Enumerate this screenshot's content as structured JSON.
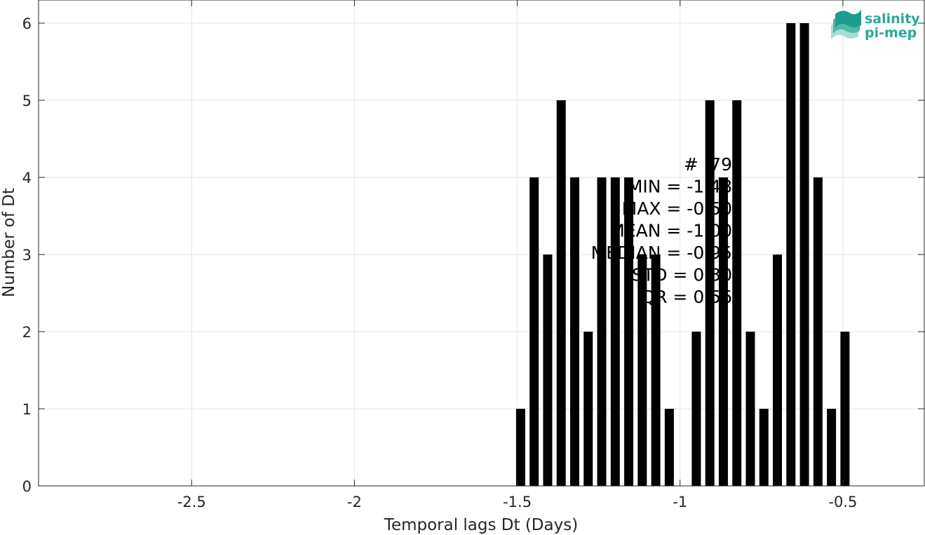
{
  "chart_data": {
    "type": "bar",
    "title": "",
    "xlabel": "Temporal lags Dt (Days)",
    "ylabel": "Number of Dt",
    "xlim": [
      -2.97,
      -0.25
    ],
    "ylim": [
      0,
      6.3
    ],
    "grid": true,
    "x_ticks": [
      -2.5,
      -2,
      -1.5,
      -1,
      -0.5
    ],
    "x_tick_labels": [
      "-2.5",
      "-2",
      "-1.5",
      "-1",
      "-0.5"
    ],
    "y_ticks": [
      0,
      1,
      2,
      3,
      4,
      5,
      6
    ],
    "y_tick_labels": [
      "0",
      "1",
      "2",
      "3",
      "4",
      "5",
      "6"
    ],
    "bar_color": "#000000",
    "bars": [
      {
        "x": -1.4896,
        "y": 1
      },
      {
        "x": -1.4481,
        "y": 4
      },
      {
        "x": -1.4066,
        "y": 3
      },
      {
        "x": -1.3651,
        "y": 5
      },
      {
        "x": -1.3236,
        "y": 4
      },
      {
        "x": -1.2821,
        "y": 2
      },
      {
        "x": -1.2406,
        "y": 4
      },
      {
        "x": -1.1991,
        "y": 4
      },
      {
        "x": -1.1576,
        "y": 4
      },
      {
        "x": -1.1161,
        "y": 3
      },
      {
        "x": -1.0746,
        "y": 3
      },
      {
        "x": -1.0331,
        "y": 1
      },
      {
        "x": -0.9501,
        "y": 2
      },
      {
        "x": -0.9086,
        "y": 5
      },
      {
        "x": -0.8671,
        "y": 4
      },
      {
        "x": -0.8256,
        "y": 5
      },
      {
        "x": -0.7841,
        "y": 2
      },
      {
        "x": -0.7426,
        "y": 1
      },
      {
        "x": -0.7011,
        "y": 3
      },
      {
        "x": -0.6596,
        "y": 6
      },
      {
        "x": -0.6181,
        "y": 6
      },
      {
        "x": -0.5766,
        "y": 4
      },
      {
        "x": -0.5351,
        "y": 1
      },
      {
        "x": -0.4936,
        "y": 2
      }
    ],
    "annotations": [
      "# :79",
      "MIN = -1.48",
      "MAX =  -0.50",
      "MEAN = -1.00",
      "MEDIAN = -0.95",
      "STD = 0.30",
      "IQR = 0.56"
    ]
  },
  "logo": {
    "line1": "salinity",
    "line2": "pi-mep",
    "color": "#2aa99b"
  }
}
